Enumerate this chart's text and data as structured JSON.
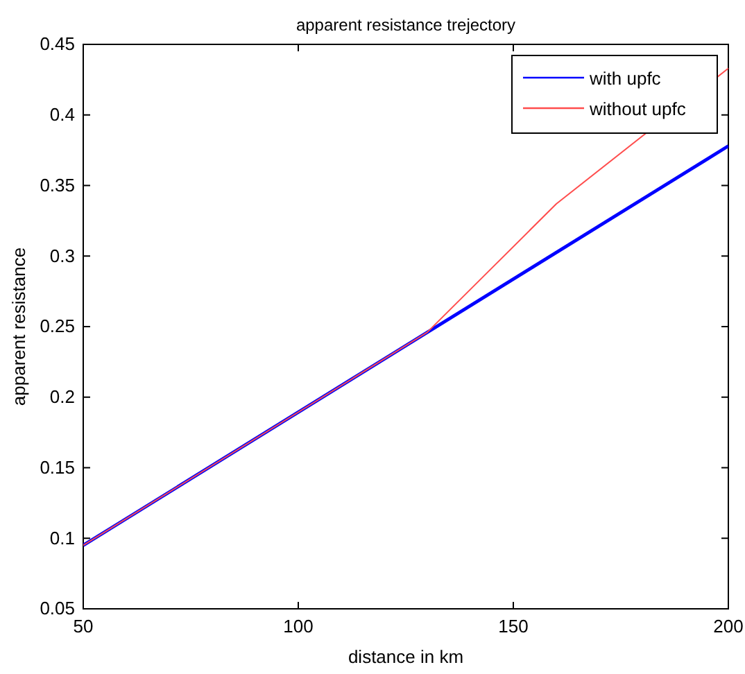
{
  "chart_data": {
    "type": "line",
    "title": "apparent resistance trejectory",
    "xlabel": "distance in km",
    "ylabel": "apparent resistance",
    "xlim": [
      50,
      200
    ],
    "xticks": [
      50,
      100,
      150,
      200
    ],
    "ylim": [
      0.05,
      0.45
    ],
    "yticks": [
      0.05,
      0.1,
      0.15,
      0.2,
      0.25,
      0.3,
      0.35,
      0.4,
      0.45
    ],
    "legend": "top right",
    "grid": false,
    "series": [
      {
        "name": "with upfc",
        "color": "#0000ff",
        "x": [
          50,
          200
        ],
        "values": [
          0.095,
          0.378
        ]
      },
      {
        "name": "without upfc",
        "color": "#ff4d4d",
        "x": [
          50,
          130,
          160,
          200
        ],
        "values": [
          0.095,
          0.246,
          0.337,
          0.433
        ]
      }
    ]
  }
}
